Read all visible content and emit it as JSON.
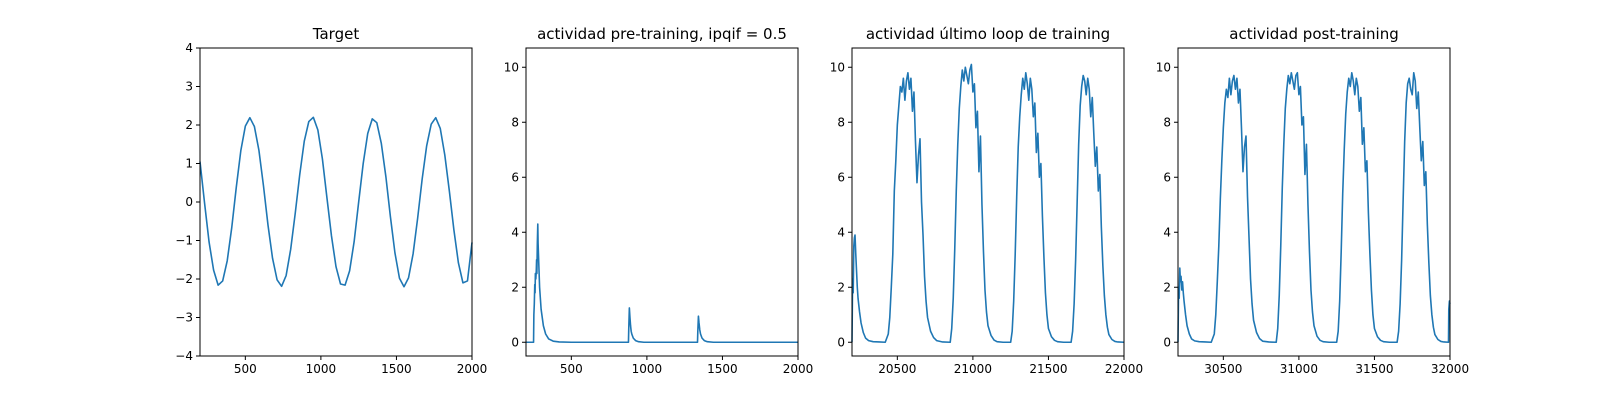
{
  "chart_data": [
    {
      "type": "line",
      "title": "Target",
      "xlabel": "",
      "ylabel": "",
      "xlim": [
        200,
        2000
      ],
      "ylim": [
        -4,
        4
      ],
      "xticks": [
        500,
        1000,
        1500,
        2000
      ],
      "yticks": [
        -4,
        -3,
        -2,
        -1,
        0,
        1,
        2,
        3,
        4
      ],
      "color": "#1f77b4",
      "series": [
        {
          "x": [
            200,
            230,
            260,
            290,
            320,
            350,
            380,
            410,
            440,
            470,
            500,
            530,
            560,
            590,
            620,
            650,
            680,
            710,
            740,
            770,
            800,
            830,
            860,
            890,
            920,
            950,
            980,
            1010,
            1040,
            1070,
            1100,
            1130,
            1160,
            1190,
            1220,
            1250,
            1280,
            1310,
            1340,
            1370,
            1400,
            1430,
            1460,
            1490,
            1520,
            1550,
            1580,
            1610,
            1640,
            1670,
            1700,
            1730,
            1760,
            1790,
            1820,
            1850,
            1880,
            1910,
            1940,
            1970,
            2000
          ],
          "y": [
            1.05,
            -0.02,
            -1.04,
            -1.77,
            -2.16,
            -2.05,
            -1.53,
            -0.67,
            0.38,
            1.33,
            1.97,
            2.19,
            1.96,
            1.34,
            0.42,
            -0.6,
            -1.46,
            -2.02,
            -2.19,
            -1.91,
            -1.23,
            -0.3,
            0.71,
            1.58,
            2.09,
            2.2,
            1.87,
            1.12,
            0.11,
            -0.88,
            -1.68,
            -2.13,
            -2.16,
            -1.79,
            -1.03,
            0.0,
            1.0,
            1.78,
            2.16,
            2.06,
            1.52,
            0.66,
            -0.38,
            -1.32,
            -1.98,
            -2.2,
            -1.97,
            -1.35,
            -0.43,
            0.59,
            1.46,
            2.02,
            2.19,
            1.91,
            1.22,
            0.29,
            -0.72,
            -1.58,
            -2.1,
            -2.05,
            -1.05
          ]
        }
      ]
    },
    {
      "type": "line",
      "title": "actividad pre-training, ipqif = 0.5",
      "xlabel": "",
      "ylabel": "",
      "xlim": [
        200,
        2000
      ],
      "ylim": [
        -0.5,
        10.7
      ],
      "xticks": [
        500,
        1000,
        1500,
        2000
      ],
      "yticks": [
        0,
        2,
        4,
        6,
        8,
        10
      ],
      "color": "#1f77b4",
      "series": [
        {
          "x": [
            200,
            250,
            252,
            255,
            258,
            260,
            262,
            265,
            268,
            270,
            272,
            275,
            278,
            280,
            285,
            290,
            300,
            315,
            330,
            350,
            380,
            420,
            500,
            600,
            700,
            800,
            878,
            880,
            884,
            888,
            892,
            896,
            900,
            910,
            925,
            945,
            980,
            1050,
            1150,
            1250,
            1335,
            1337,
            1341,
            1345,
            1350,
            1355,
            1365,
            1380,
            1400,
            1440,
            1500,
            1700,
            1900,
            2000
          ],
          "y": [
            0,
            0,
            1.0,
            1.4,
            2.1,
            1.8,
            2.5,
            2.3,
            2.6,
            3.0,
            2.5,
            3.6,
            4.3,
            3.6,
            2.8,
            2.0,
            1.2,
            0.6,
            0.3,
            0.12,
            0.04,
            0.01,
            0,
            0,
            0,
            0,
            0,
            0.5,
            1.25,
            0.9,
            0.6,
            0.4,
            0.3,
            0.15,
            0.06,
            0.02,
            0,
            0,
            0,
            0,
            0,
            0.4,
            0.95,
            0.7,
            0.45,
            0.3,
            0.15,
            0.06,
            0.02,
            0,
            0,
            0,
            0,
            0
          ]
        }
      ]
    },
    {
      "type": "line",
      "title": "actividad último loop de training",
      "xlabel": "",
      "ylabel": "",
      "xlim": [
        20200,
        22000
      ],
      "ylim": [
        -0.5,
        10.7
      ],
      "xticks": [
        20500,
        21000,
        21500,
        22000
      ],
      "yticks": [
        0,
        2,
        4,
        6,
        8,
        10
      ],
      "color": "#1f77b4",
      "series": [
        {
          "x": [
            20200,
            20204,
            20208,
            20212,
            20216,
            20220,
            20225,
            20230,
            20235,
            20240,
            20250,
            20260,
            20275,
            20290,
            20310,
            20340,
            20380,
            20420,
            20440,
            20450,
            20460,
            20470,
            20480,
            20490,
            20500,
            20510,
            20520,
            20530,
            20540,
            20550,
            20560,
            20570,
            20580,
            20590,
            20600,
            20610,
            20620,
            20630,
            20640,
            20650,
            20660,
            20670,
            20680,
            20690,
            20700,
            20720,
            20740,
            20760,
            20800,
            20850,
            20860,
            20870,
            20880,
            20890,
            20900,
            20910,
            20920,
            20930,
            20940,
            20950,
            20960,
            20970,
            20980,
            20990,
            21000,
            21010,
            21020,
            21030,
            21040,
            21050,
            21060,
            21070,
            21080,
            21090,
            21100,
            21120,
            21140,
            21160,
            21200,
            21250,
            21260,
            21270,
            21280,
            21290,
            21300,
            21310,
            21320,
            21330,
            21340,
            21350,
            21360,
            21370,
            21380,
            21390,
            21400,
            21410,
            21420,
            21430,
            21440,
            21450,
            21460,
            21470,
            21480,
            21490,
            21500,
            21520,
            21540,
            21560,
            21600,
            21650,
            21660,
            21670,
            21680,
            21690,
            21700,
            21710,
            21720,
            21730,
            21740,
            21750,
            21760,
            21770,
            21780,
            21790,
            21800,
            21810,
            21820,
            21830,
            21840,
            21850,
            21860,
            21870,
            21880,
            21890,
            21900,
            21920,
            21940,
            21960,
            22000
          ],
          "y": [
            0,
            2.3,
            1.8,
            3.5,
            3.8,
            3.9,
            3.2,
            2.6,
            2.0,
            1.6,
            1.1,
            0.7,
            0.35,
            0.15,
            0.06,
            0.02,
            0.01,
            0,
            0.3,
            0.9,
            2.0,
            3.2,
            5.5,
            6.6,
            7.9,
            8.6,
            9.3,
            9.1,
            9.6,
            8.8,
            9.5,
            9.8,
            9.2,
            9.6,
            8.4,
            9.1,
            7.3,
            5.8,
            6.8,
            7.4,
            5.1,
            3.9,
            2.4,
            1.5,
            0.9,
            0.4,
            0.17,
            0.06,
            0.01,
            0,
            0.5,
            1.6,
            3.4,
            5.5,
            7.2,
            8.5,
            9.3,
            9.9,
            9.5,
            10.0,
            9.7,
            9.4,
            9.9,
            10.1,
            9.1,
            9.4,
            7.8,
            8.4,
            6.2,
            7.5,
            5.0,
            3.3,
            1.9,
            1.1,
            0.6,
            0.25,
            0.08,
            0.02,
            0,
            0,
            0.4,
            1.5,
            3.2,
            5.3,
            7.1,
            8.2,
            9.0,
            9.6,
            9.2,
            9.8,
            9.4,
            8.8,
            9.6,
            9.2,
            8.2,
            8.7,
            6.9,
            7.6,
            6.0,
            6.5,
            4.6,
            3.1,
            1.8,
            1.0,
            0.5,
            0.2,
            0.07,
            0.02,
            0,
            0,
            0.4,
            1.4,
            3.0,
            5.1,
            7.2,
            8.6,
            9.3,
            9.7,
            9.5,
            9.0,
            9.6,
            9.2,
            8.2,
            8.9,
            7.6,
            6.4,
            7.1,
            5.5,
            6.1,
            4.2,
            2.8,
            1.7,
            1.0,
            0.55,
            0.28,
            0.1,
            0.03,
            0.01,
            0
          ]
        }
      ]
    },
    {
      "type": "line",
      "title": "actividad post-training",
      "xlabel": "",
      "ylabel": "",
      "xlim": [
        30200,
        32000
      ],
      "ylim": [
        -0.5,
        10.7
      ],
      "xticks": [
        30500,
        31000,
        31500,
        32000
      ],
      "yticks": [
        0,
        2,
        4,
        6,
        8,
        10
      ],
      "color": "#1f77b4",
      "series": [
        {
          "x": [
            30200,
            30204,
            30208,
            30212,
            30216,
            30220,
            30225,
            30230,
            30235,
            30240,
            30250,
            30260,
            30275,
            30290,
            30310,
            30340,
            30380,
            30420,
            30440,
            30450,
            30460,
            30470,
            30480,
            30490,
            30500,
            30510,
            30520,
            30530,
            30540,
            30550,
            30560,
            30570,
            30580,
            30590,
            30600,
            30610,
            30620,
            30630,
            30640,
            30650,
            30660,
            30670,
            30680,
            30690,
            30700,
            30720,
            30740,
            30760,
            30800,
            30850,
            30860,
            30870,
            30880,
            30890,
            30900,
            30910,
            30920,
            30930,
            30940,
            30950,
            30960,
            30970,
            30980,
            30990,
            31000,
            31010,
            31020,
            31030,
            31040,
            31050,
            31060,
            31070,
            31080,
            31090,
            31100,
            31120,
            31140,
            31160,
            31200,
            31250,
            31260,
            31270,
            31280,
            31290,
            31300,
            31310,
            31320,
            31330,
            31340,
            31350,
            31360,
            31370,
            31380,
            31390,
            31400,
            31410,
            31420,
            31430,
            31440,
            31450,
            31460,
            31470,
            31480,
            31490,
            31500,
            31520,
            31540,
            31560,
            31600,
            31650,
            31660,
            31670,
            31680,
            31690,
            31700,
            31710,
            31720,
            31730,
            31740,
            31750,
            31760,
            31770,
            31780,
            31790,
            31800,
            31810,
            31820,
            31830,
            31840,
            31850,
            31860,
            31870,
            31880,
            31890,
            31900,
            31920,
            31940,
            31960,
            31990,
            31992,
            31996,
            32000
          ],
          "y": [
            0,
            2.0,
            1.6,
            2.7,
            2.2,
            2.4,
            1.9,
            2.2,
            1.8,
            1.5,
            1.0,
            0.6,
            0.3,
            0.12,
            0.05,
            0.02,
            0.01,
            0,
            0.3,
            1.0,
            2.2,
            3.5,
            5.2,
            6.6,
            7.8,
            8.7,
            9.2,
            8.9,
            9.6,
            9.0,
            9.5,
            9.7,
            9.2,
            9.6,
            8.7,
            9.2,
            7.8,
            6.2,
            7.1,
            7.5,
            5.3,
            3.8,
            2.3,
            1.4,
            0.8,
            0.35,
            0.13,
            0.04,
            0.01,
            0,
            0.5,
            1.7,
            3.5,
            5.6,
            7.2,
            8.5,
            9.2,
            9.7,
            9.4,
            9.8,
            9.5,
            9.2,
            9.7,
            9.8,
            9.0,
            9.3,
            7.9,
            8.2,
            6.1,
            7.2,
            5.0,
            3.3,
            1.9,
            1.1,
            0.6,
            0.22,
            0.07,
            0.02,
            0,
            0,
            0.4,
            1.5,
            3.3,
            5.4,
            7.0,
            8.3,
            9.1,
            9.6,
            9.3,
            9.8,
            9.5,
            9.0,
            9.6,
            9.3,
            8.4,
            8.9,
            7.2,
            7.8,
            6.2,
            6.6,
            4.7,
            3.2,
            1.9,
            1.0,
            0.5,
            0.2,
            0.07,
            0.02,
            0,
            0,
            0.4,
            1.4,
            3.0,
            5.2,
            7.3,
            8.7,
            9.4,
            9.6,
            9.2,
            9.0,
            9.8,
            9.5,
            8.5,
            9.1,
            7.8,
            6.6,
            7.3,
            5.7,
            6.2,
            4.3,
            2.9,
            1.7,
            1.0,
            0.55,
            0.28,
            0.1,
            0.03,
            0.01,
            0,
            1.2,
            1.5,
            1.4
          ]
        }
      ]
    }
  ]
}
